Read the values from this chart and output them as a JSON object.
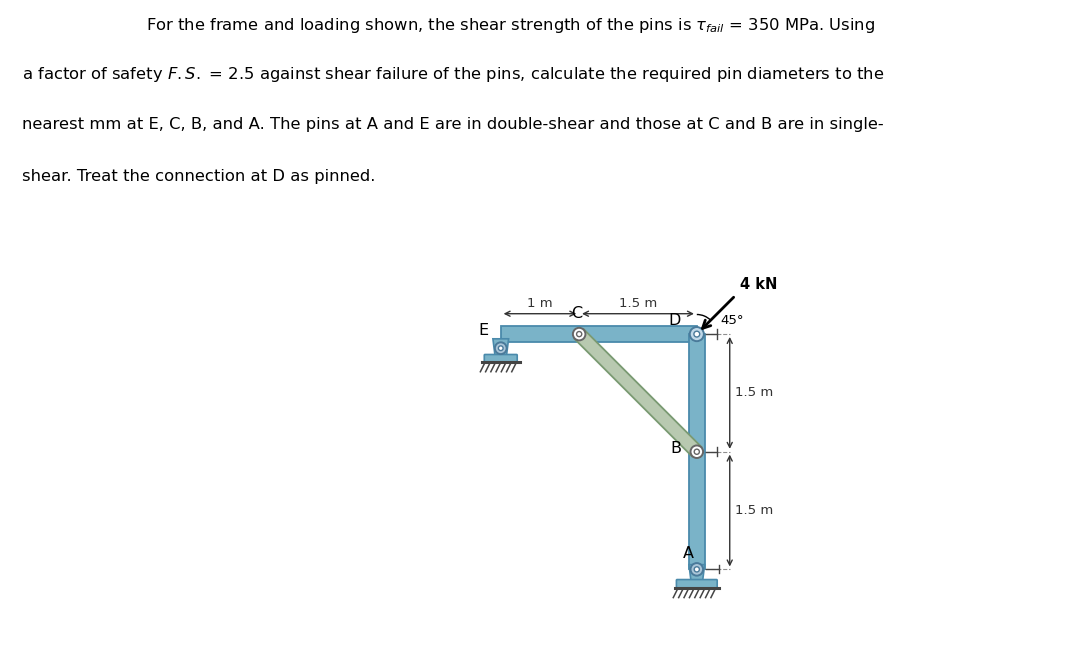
{
  "bg_color": "#ffffff",
  "beam_color": "#7ab3c8",
  "beam_edge_color": "#4a8aab",
  "strut_color": "#b8c9b0",
  "strut_edge_color": "#7a9a72",
  "pin_color_light": "#c8dce6",
  "pin_color_dark": "#5a8aab",
  "text_color": "#000000",
  "dim_color": "#333333",
  "hatch_color": "#555555",
  "E": [
    0.0,
    0.0
  ],
  "C": [
    1.0,
    0.0
  ],
  "D": [
    2.5,
    0.0
  ],
  "B": [
    2.5,
    -1.5
  ],
  "A": [
    2.5,
    -3.0
  ],
  "beam_hw": 0.1,
  "strut_hw": 0.085,
  "title_lines": [
    "For the frame and loading shown, the shear strength of the pins is $\\tau_{fail}$ = 350 MPa. Using",
    "a factor of safety $F.S.$ = 2.5 against shear failure of the pins, calculate the required pin diameters to the",
    "nearest mm at E, C, B, and A. The pins at A and E are in double-shear and those at C and B are in single-",
    "shear. Treat the connection at D as pinned."
  ]
}
